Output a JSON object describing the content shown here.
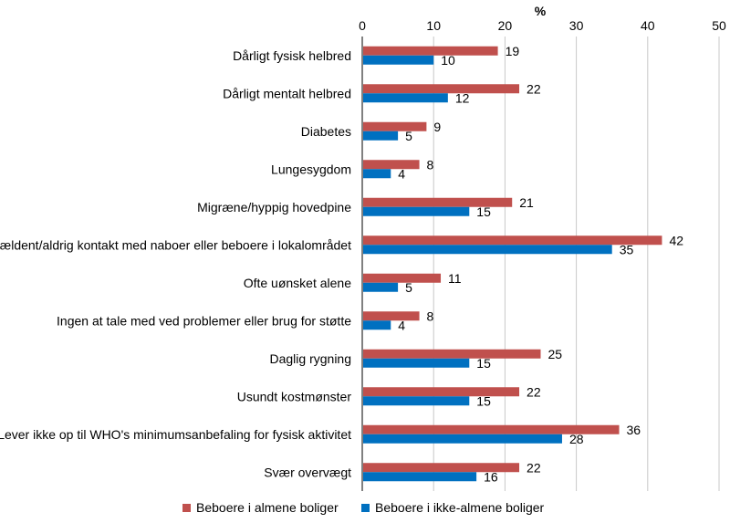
{
  "chart_data": {
    "type": "bar",
    "orientation": "horizontal",
    "title": "",
    "xlabel": "%",
    "ylabel": "",
    "xlim": [
      0,
      50
    ],
    "xticks": [
      0,
      10,
      20,
      30,
      40,
      50
    ],
    "grid": true,
    "legend_position": "bottom",
    "categories": [
      "Dårligt fysisk helbred",
      "Dårligt mentalt helbred",
      "Diabetes",
      "Lungesygdom",
      "Migræne/hyppig hovedpine",
      "Sjældent/aldrig kontakt med naboer eller beboere i lokalområdet",
      "Ofte uønsket alene",
      "Ingen at tale med ved problemer eller brug for støtte",
      "Daglig rygning",
      "Usundt kostmønster",
      "Lever ikke op til WHO's minimumsanbefaling for fysisk aktivitet",
      "Svær overvægt"
    ],
    "series": [
      {
        "name": "Beboere i almene boliger",
        "color": "#C0504D",
        "values": [
          19,
          22,
          9,
          8,
          21,
          42,
          11,
          8,
          25,
          22,
          36,
          22
        ]
      },
      {
        "name": "Beboere i ikke-almene boliger",
        "color": "#0070C0",
        "values": [
          10,
          12,
          5,
          4,
          15,
          35,
          5,
          4,
          15,
          15,
          28,
          16
        ]
      }
    ]
  }
}
